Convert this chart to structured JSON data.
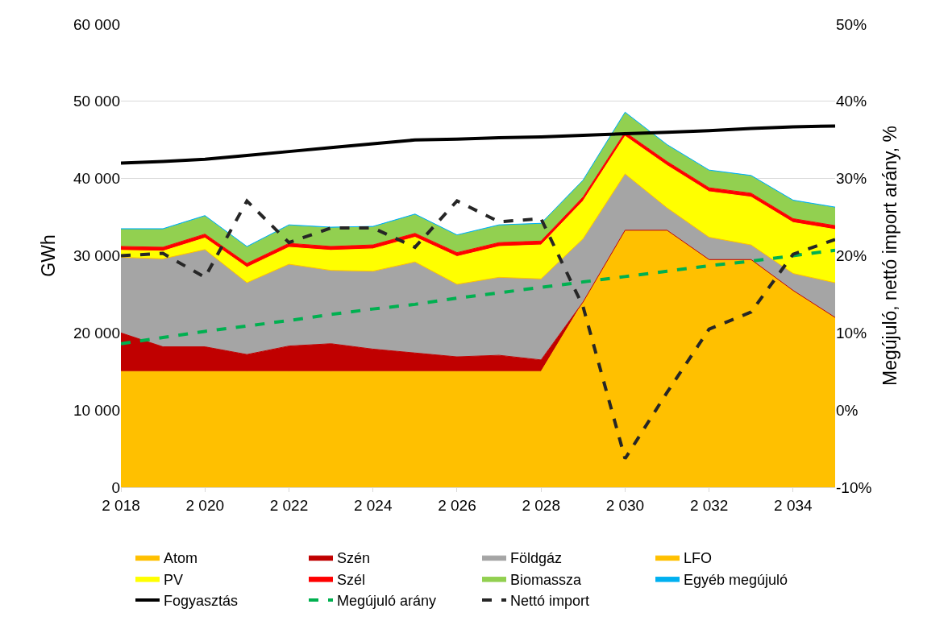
{
  "chart_data": {
    "type": "area",
    "stacked": true,
    "ylabel": "GWh",
    "y2label": "Megújuló, nettó import arány, %",
    "x": [
      2018,
      2019,
      2020,
      2021,
      2022,
      2023,
      2024,
      2025,
      2026,
      2027,
      2028,
      2029,
      2030,
      2031,
      2032,
      2033,
      2034,
      2035
    ],
    "xlim": [
      2018,
      2035
    ],
    "xticks": [
      {
        "value": 2018,
        "label": "2 018"
      },
      {
        "value": 2020,
        "label": "2 020"
      },
      {
        "value": 2022,
        "label": "2 022"
      },
      {
        "value": 2024,
        "label": "2 024"
      },
      {
        "value": 2026,
        "label": "2 026"
      },
      {
        "value": 2028,
        "label": "2 028"
      },
      {
        "value": 2030,
        "label": "2 030"
      },
      {
        "value": 2032,
        "label": "2 032"
      },
      {
        "value": 2034,
        "label": "2 034"
      }
    ],
    "ylim": [
      0,
      60000
    ],
    "yticks": [
      0,
      {
        "value": 10000,
        "label": "10 000"
      },
      {
        "value": 20000,
        "label": "20 000"
      },
      {
        "value": 30000,
        "label": "30 000"
      },
      {
        "value": 40000,
        "label": "40 000"
      },
      {
        "value": 50000,
        "label": "50 000"
      },
      {
        "value": 60000,
        "label": "60 000"
      }
    ],
    "y2lim": [
      -10,
      50
    ],
    "y2ticks": [
      {
        "value": -10,
        "label": "-10%"
      },
      {
        "value": 0,
        "label": "0%"
      },
      {
        "value": 10,
        "label": "10%"
      },
      {
        "value": 20,
        "label": "20%"
      },
      {
        "value": 30,
        "label": "30%"
      },
      {
        "value": 40,
        "label": "40%"
      },
      {
        "value": 50,
        "label": "50%"
      }
    ],
    "grid": "y",
    "legend": "bottom",
    "series": [
      {
        "name": "Atom",
        "color": "#ffc000",
        "values": [
          15000,
          15000,
          15000,
          15000,
          15000,
          15000,
          15000,
          15000,
          15000,
          15000,
          15000,
          24000,
          33300,
          33300,
          29500,
          29500,
          25500,
          22000
        ]
      },
      {
        "name": "Szén",
        "color": "#c00000",
        "values": [
          5000,
          3200,
          3200,
          2200,
          3300,
          3600,
          2900,
          2400,
          1900,
          2100,
          1500,
          0,
          0,
          0,
          0,
          0,
          0,
          0
        ]
      },
      {
        "name": "Földgáz",
        "color": "#a5a5a5",
        "values": [
          9800,
          11400,
          12600,
          9300,
          10600,
          9500,
          10100,
          11800,
          9400,
          10100,
          10500,
          8200,
          7300,
          2900,
          2900,
          1900,
          2200,
          4500
        ]
      },
      {
        "name": "LFO",
        "color": "#ffc000",
        "values": [
          null,
          null,
          null,
          null,
          null,
          null,
          null,
          null,
          null,
          null,
          null,
          null,
          null,
          null,
          null,
          null,
          null,
          null
        ]
      },
      {
        "name": "PV",
        "color": "#ffff00",
        "values": [
          900,
          1000,
          1500,
          2000,
          2200,
          2600,
          2900,
          3200,
          3600,
          4000,
          4400,
          4900,
          4900,
          5500,
          5900,
          6200,
          6600,
          6900
        ]
      },
      {
        "name": "Szél",
        "color": "#ff0000",
        "values": [
          500,
          500,
          500,
          500,
          500,
          500,
          500,
          500,
          500,
          500,
          500,
          500,
          500,
          500,
          500,
          500,
          500,
          500
        ]
      },
      {
        "name": "Biomassza",
        "color": "#92d050",
        "values": [
          2200,
          2300,
          2300,
          2100,
          2300,
          2400,
          2300,
          2400,
          2200,
          2200,
          2200,
          2100,
          2500,
          2100,
          2200,
          2200,
          2300,
          2300
        ]
      },
      {
        "name": "Egyéb megújuló",
        "color": "#00b0f0",
        "values": [
          100,
          100,
          100,
          100,
          100,
          100,
          100,
          100,
          100,
          100,
          100,
          100,
          100,
          100,
          100,
          100,
          100,
          100
        ]
      },
      {
        "name": "Fogyasztás",
        "type": "line",
        "color": "#000000",
        "line_style": "solid",
        "values": [
          42000,
          42200,
          42500,
          43000,
          43500,
          44000,
          44500,
          45000,
          45100,
          45300,
          45400,
          45600,
          45800,
          46000,
          46200,
          46500,
          46700,
          46800
        ]
      },
      {
        "name": "Megújuló arány",
        "type": "line",
        "axis": "y2",
        "color": "#00b050",
        "line_style": "dashed",
        "values": [
          8.6,
          9.4,
          10.2,
          10.9,
          11.6,
          12.4,
          13.1,
          13.7,
          14.5,
          15.2,
          15.9,
          16.6,
          17.3,
          18.0,
          18.7,
          19.3,
          20.0,
          20.7
        ]
      },
      {
        "name": "Nettó import",
        "type": "line",
        "axis": "y2",
        "color": "#262626",
        "line_style": "dashed",
        "values": [
          20.0,
          20.3,
          17.2,
          27.1,
          21.7,
          23.6,
          23.6,
          21.1,
          27.1,
          24.4,
          24.8,
          13.4,
          -6.3,
          2.3,
          10.5,
          12.7,
          20.2,
          22.1
        ]
      }
    ]
  }
}
